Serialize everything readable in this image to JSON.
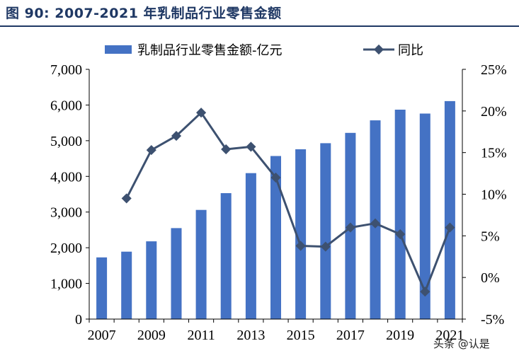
{
  "title": "图 90: 2007-2021 年乳制品行业零售金额",
  "watermark": "头条 @认是",
  "colors": {
    "bar": "#4472c4",
    "line": "#3d5170",
    "title": "#1f3864"
  },
  "chart_data": {
    "type": "bar",
    "title": "",
    "legend_position": "top",
    "x": [
      2007,
      2008,
      2009,
      2010,
      2011,
      2012,
      2013,
      2014,
      2015,
      2016,
      2017,
      2018,
      2019,
      2020,
      2021
    ],
    "x_tick_labels": [
      "2007",
      "2009",
      "2011",
      "2013",
      "2015",
      "2017",
      "2019",
      "2021"
    ],
    "y_left": {
      "range": [
        0,
        7000
      ],
      "tick_labels": [
        "0",
        "1,000",
        "2,000",
        "3,000",
        "4,000",
        "5,000",
        "6,000",
        "7,000"
      ]
    },
    "y_right": {
      "range": [
        -5,
        25
      ],
      "tick_labels": [
        "-5%",
        "0%",
        "5%",
        "10%",
        "15%",
        "20%",
        "25%"
      ]
    },
    "series": [
      {
        "name": "乳制品行业零售金额-亿元",
        "type": "bar",
        "axis": "left",
        "values": [
          1730,
          1890,
          2180,
          2550,
          3060,
          3530,
          4090,
          4570,
          4760,
          4930,
          5220,
          5570,
          5870,
          5760,
          6110
        ]
      },
      {
        "name": "同比",
        "type": "line",
        "axis": "right",
        "values": [
          null,
          9.5,
          15.3,
          17.0,
          19.8,
          15.4,
          15.7,
          12.0,
          3.8,
          3.7,
          6.0,
          6.5,
          5.2,
          -1.7,
          6.0
        ]
      }
    ]
  }
}
